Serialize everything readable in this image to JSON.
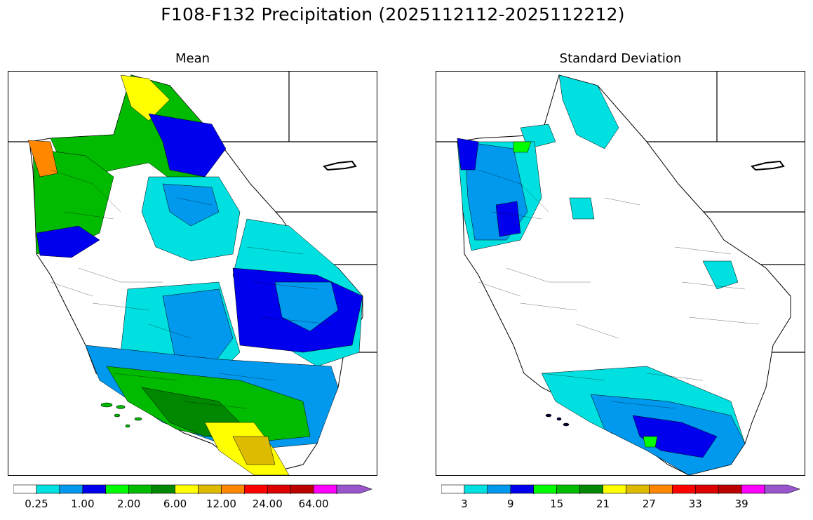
{
  "title": "F108-F132 Precipitation (2025112112-2025112212)",
  "panels": [
    {
      "title": "Mean",
      "colorbar": {
        "colors": [
          "#ffffff",
          "#00e0e0",
          "#0099ee",
          "#0000ee",
          "#00ff00",
          "#00bb00",
          "#008800",
          "#ffff00",
          "#ddbb00",
          "#ff8800",
          "#ff0000",
          "#dd0000",
          "#bb0000",
          "#ff00ff",
          "#9955cc"
        ],
        "tick_labels": [
          "0.25",
          "1.00",
          "2.00",
          "6.00",
          "12.00",
          "24.00",
          "64.00"
        ]
      }
    },
    {
      "title": "Standard Deviation",
      "colorbar": {
        "colors": [
          "#ffffff",
          "#00e0e0",
          "#0099ee",
          "#0000ee",
          "#00ff00",
          "#00bb00",
          "#008800",
          "#ffff00",
          "#ddbb00",
          "#ff8800",
          "#ff0000",
          "#dd0000",
          "#bb0000",
          "#ff00ff",
          "#9955cc"
        ],
        "tick_labels": [
          "3",
          "9",
          "15",
          "21",
          "27",
          "33",
          "39"
        ]
      }
    }
  ]
}
